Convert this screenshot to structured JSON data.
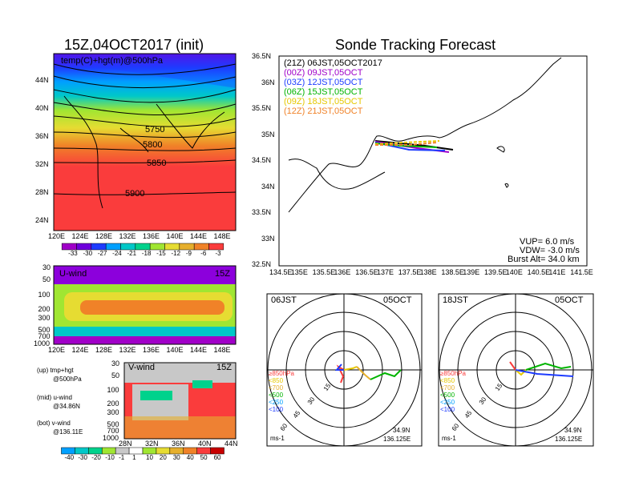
{
  "left": {
    "title": "15Z,04OCT2017 (init)",
    "map_label": "temp(C)+hgt(m)@500hPa",
    "contours": [
      "5750",
      "5800",
      "5850",
      "5900"
    ],
    "lat_ticks": [
      "44N",
      "40N",
      "36N",
      "32N",
      "28N",
      "24N"
    ],
    "lon_ticks": [
      "120E",
      "124E",
      "128E",
      "132E",
      "136E",
      "140E",
      "144E",
      "148E"
    ],
    "colorbar_top": [
      "-33",
      "-30",
      "-27",
      "-24",
      "-21",
      "-18",
      "-15",
      "-12",
      "-9",
      "-6",
      "-3"
    ],
    "colorbar_top_colors": [
      "#a000c8",
      "#6e00dc",
      "#1e3cff",
      "#00a0ff",
      "#00c8c8",
      "#00d28c",
      "#a0e632",
      "#e6dc32",
      "#e6af2d",
      "#f08228",
      "#fa3c3c"
    ],
    "uwind": {
      "label": "U-wind",
      "time": "15Z",
      "p_ticks": [
        "30",
        "50",
        "100",
        "200",
        "300",
        "500",
        "700",
        "1000"
      ],
      "lon_ticks": [
        "120E",
        "124E",
        "128E",
        "132E",
        "136E",
        "140E",
        "144E",
        "148E"
      ]
    },
    "vwind": {
      "label": "V-wind",
      "time": "15Z",
      "p_ticks": [
        "30",
        "50",
        "100",
        "200",
        "300",
        "500",
        "700",
        "1000"
      ],
      "lat_ticks": [
        "28N",
        "32N",
        "36N",
        "40N",
        "44N"
      ]
    },
    "legend": {
      "up": "(up) tmp+hgt",
      "up2": "@500hPa",
      "mid": "(mid) u-wind",
      "mid2": "@34.86N",
      "bot": "(bot) v-wind",
      "bot2": "@136.11E"
    },
    "colorbar_bottom": [
      "-40",
      "-30",
      "-20",
      "-10",
      "-1",
      "1",
      "10",
      "20",
      "30",
      "40",
      "50",
      "60"
    ],
    "colorbar_bottom_colors": [
      "#00a0ff",
      "#00c8c8",
      "#00d28c",
      "#a0e632",
      "#c8c8c8",
      "#ffffff",
      "#a0e632",
      "#e6dc32",
      "#e6af2d",
      "#f08228",
      "#fa3c3c",
      "#c80000"
    ]
  },
  "right": {
    "title": "Sonde Tracking Forecast",
    "legend": [
      {
        "text": "(21Z) 06JST,05OCT2017",
        "color": "#000000"
      },
      {
        "text": "(00Z) 09JST,05OCT",
        "color": "#a000c8"
      },
      {
        "text": "(03Z) 12JST,05OCT",
        "color": "#1e3cff"
      },
      {
        "text": "(06Z) 15JST,05OCT",
        "color": "#00b400"
      },
      {
        "text": "(09Z) 18JST,05OCT",
        "color": "#e6c800"
      },
      {
        "text": "(12Z) 21JST,05OCT",
        "color": "#f08228"
      }
    ],
    "lat_ticks": [
      "36.5N",
      "36N",
      "35.5N",
      "35N",
      "34.5N",
      "34N",
      "33.5N",
      "33N",
      "32.5N"
    ],
    "lon_ticks": [
      "134.5E",
      "135E",
      "135.5E",
      "136E",
      "136.5E",
      "137E",
      "137.5E",
      "138E",
      "138.5E",
      "139E",
      "139.5E",
      "140E",
      "140.5E",
      "141E",
      "141.5E"
    ],
    "params": {
      "vup": "VUP= 6.0 m/s",
      "vdw": "VDW= -3.0 m/s",
      "burst": "Burst Alt= 34.0 km"
    }
  },
  "hodo1": {
    "time": "06JST",
    "date": "05OCT",
    "rings": [
      "15",
      "30",
      "45",
      "60"
    ],
    "levels": [
      "≥850hPa",
      "<850",
      "<700",
      "<500",
      "<250",
      "<100"
    ],
    "level_colors": [
      "#fa3c3c",
      "#e6c800",
      "#e6af2d",
      "#00b400",
      "#00a0ff",
      "#1e3cff"
    ],
    "unit": "ms-1",
    "lat": "34.9N",
    "lon": "136.125E"
  },
  "hodo2": {
    "time": "18JST",
    "date": "05OCT",
    "rings": [
      "15",
      "30",
      "45",
      "60"
    ],
    "levels": [
      "≥850hPa",
      "<850",
      "<700",
      "<500",
      "<250",
      "<100"
    ],
    "level_colors": [
      "#fa3c3c",
      "#e6c800",
      "#e6af2d",
      "#00b400",
      "#00a0ff",
      "#1e3cff"
    ],
    "unit": "ms-1",
    "lat": "34.9N",
    "lon": "136.125E"
  }
}
